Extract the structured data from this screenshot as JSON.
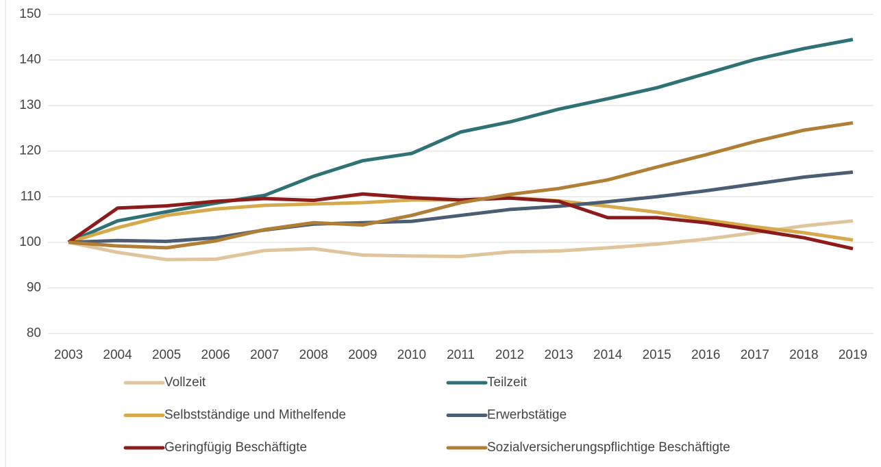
{
  "chart_data": {
    "type": "line",
    "categories": [
      "2003",
      "2004",
      "2005",
      "2006",
      "2007",
      "2008",
      "2009",
      "2010",
      "2011",
      "2012",
      "2013",
      "2014",
      "2015",
      "2016",
      "2017",
      "2018",
      "2019"
    ],
    "series": [
      {
        "name": "Vollzeit",
        "color": "#e0c59c",
        "values": [
          100,
          97.8,
          96.2,
          96.3,
          98.2,
          98.6,
          97.2,
          97.0,
          96.9,
          97.9,
          98.1,
          98.8,
          99.6,
          100.7,
          102.1,
          103.6,
          104.7
        ]
      },
      {
        "name": "Teilzeit",
        "color": "#2e7276",
        "values": [
          100,
          104.7,
          106.7,
          108.6,
          110.3,
          114.5,
          117.9,
          119.5,
          124.2,
          126.4,
          129.2,
          131.5,
          133.9,
          137.0,
          140.1,
          142.5,
          144.5
        ]
      },
      {
        "name": "Selbstständige und Mithelfende",
        "color": "#d6aa4c",
        "values": [
          100,
          103.2,
          105.9,
          107.3,
          108.1,
          108.4,
          108.7,
          109.3,
          109.3,
          109.8,
          109.1,
          107.9,
          106.6,
          104.9,
          103.4,
          102.1,
          100.5
        ]
      },
      {
        "name": "Erwerbstätige",
        "color": "#4a5d72",
        "values": [
          100,
          100.4,
          100.2,
          101.0,
          102.7,
          104.0,
          104.3,
          104.6,
          105.9,
          107.2,
          107.9,
          108.9,
          110.0,
          111.3,
          112.8,
          114.3,
          115.4
        ]
      },
      {
        "name": "Geringfügig Beschäftigte",
        "color": "#8c1b1b",
        "values": [
          100,
          107.5,
          108.0,
          109.0,
          109.6,
          109.2,
          110.6,
          109.8,
          109.3,
          109.7,
          109.0,
          105.4,
          105.4,
          104.3,
          102.7,
          101.0,
          98.6
        ]
      },
      {
        "name": "Sozialversicherungspflichtige Beschäftigte",
        "color": "#b07e35",
        "values": [
          100,
          99.2,
          98.8,
          100.3,
          102.8,
          104.3,
          103.8,
          105.9,
          108.7,
          110.5,
          111.8,
          113.7,
          116.5,
          119.2,
          122.1,
          124.6,
          126.2
        ]
      }
    ],
    "ylim": [
      80,
      150
    ],
    "yticks": [
      80,
      90,
      100,
      110,
      120,
      130,
      140,
      150
    ],
    "grid": true,
    "legend": "bottom"
  }
}
